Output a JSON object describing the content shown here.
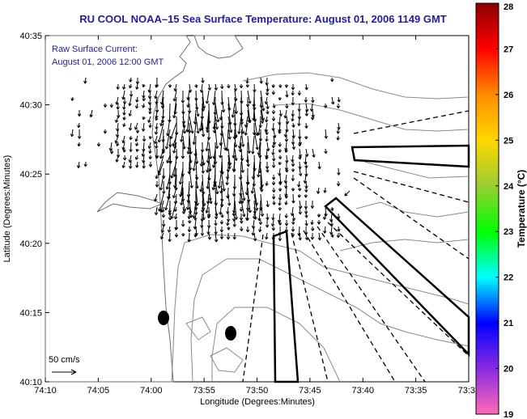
{
  "title": "RU COOL  NOAA–15  Sea Surface Temperature:  August 01, 2006 1149 GMT",
  "legend": {
    "line1": "Raw Surface Current:",
    "line2": "August 01, 2006 12:00 GMT"
  },
  "scale_label": "50 cm/s",
  "axes": {
    "xlabel": "Longitude (Degrees:Minutes)",
    "ylabel": "Latitude (Degrees:Minutes)",
    "xticks": [
      "74:10",
      "74:05",
      "74:00",
      "73:55",
      "73:50",
      "73:45",
      "73:40",
      "73:35",
      "73:3"
    ],
    "yticks": [
      "40:35",
      "40:30",
      "40:25",
      "40:20",
      "40:15",
      "40:10"
    ]
  },
  "colorbar": {
    "label": "Temperature (°C)",
    "ticks": [
      "28",
      "27",
      "26",
      "25",
      "24",
      "23",
      "22",
      "21",
      "20",
      "19"
    ],
    "colors": [
      "#8b0000",
      "#ff0000",
      "#ff8c00",
      "#ffd700",
      "#9acd32",
      "#00ff00",
      "#00ffff",
      "#0000ff",
      "#8a2be2",
      "#ff69b4"
    ]
  }
}
